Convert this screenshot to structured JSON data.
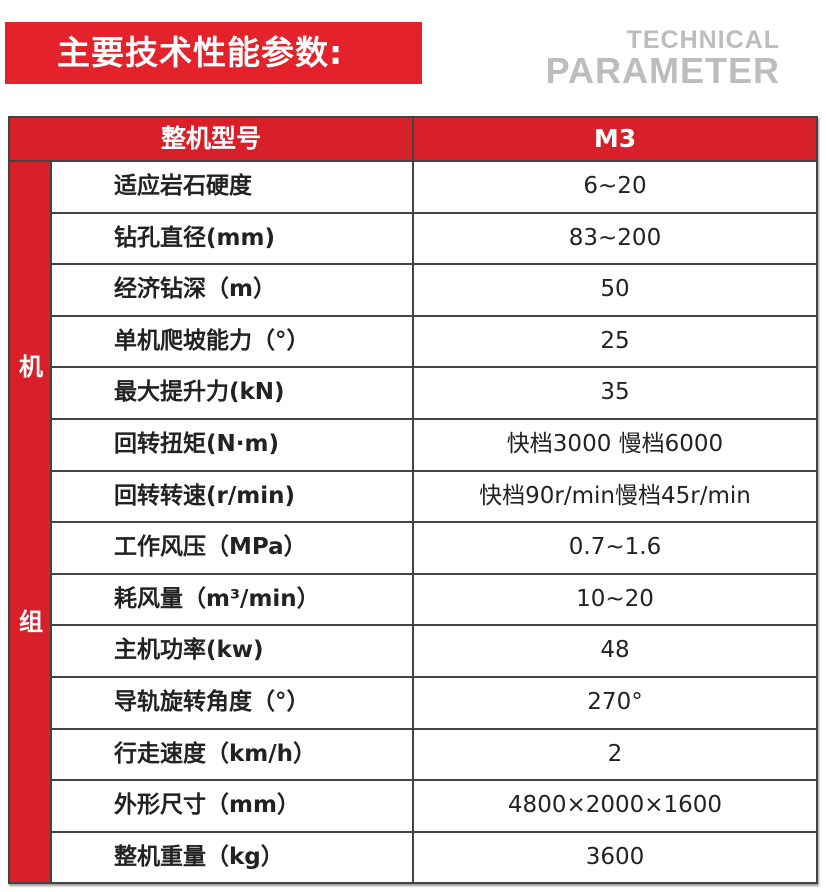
{
  "title": "主要技术性能参数:",
  "en_title": {
    "line1": "TECHNICAL",
    "line2": "PARAMETER"
  },
  "header": {
    "label": "整机型号",
    "model": "M3"
  },
  "group_label": [
    "机",
    "组"
  ],
  "rows": [
    {
      "k": "适应岩石硬度",
      "v": "6~20"
    },
    {
      "k": "钻孔直径(mm)",
      "v": "83~200"
    },
    {
      "k": "经济钻深（m）",
      "v": "50"
    },
    {
      "k": "单机爬坡能力（°）",
      "v": "25"
    },
    {
      "k": "最大提升力(kN)",
      "v": "35"
    },
    {
      "k": "回转扭矩(N·m)",
      "v": "快档3000  慢档6000"
    },
    {
      "k": "回转转速(r/min)",
      "v": "快档90r/min慢档45r/min"
    },
    {
      "k": "工作风压（MPa）",
      "v": "0.7~1.6"
    },
    {
      "k": "耗风量（m³/min）",
      "v": "10~20"
    },
    {
      "k": "主机功率(kw)",
      "v": "48"
    },
    {
      "k": "导轨旋转角度（°）",
      "v": "270°"
    },
    {
      "k": "行走速度（km/h）",
      "v": "2"
    },
    {
      "k": "外形尺寸（mm）",
      "v": "4800×2000×1600"
    },
    {
      "k": "整机重量（kg）",
      "v": "3600"
    }
  ]
}
